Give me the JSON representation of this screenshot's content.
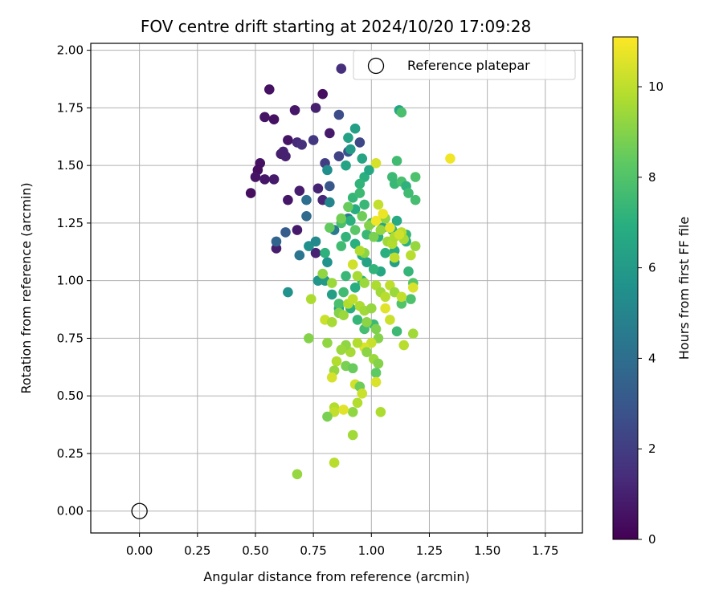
{
  "chart_data": {
    "type": "scatter",
    "title": "FOV centre drift starting at 2024/10/20 17:09:28",
    "xlabel": "Angular distance from reference (arcmin)",
    "ylabel": "Rotation from reference (arcmin)",
    "xlim": [
      -0.21,
      1.91
    ],
    "ylim": [
      -0.095,
      2.03
    ],
    "x_ticks": [
      "0.00",
      "0.25",
      "0.50",
      "0.75",
      "1.00",
      "1.25",
      "1.50",
      "1.75"
    ],
    "y_ticks": [
      "0.00",
      "0.25",
      "0.50",
      "0.75",
      "1.00",
      "1.25",
      "1.50",
      "1.75",
      "2.00"
    ],
    "grid": true,
    "legend": {
      "position": "top-right",
      "entries": [
        "Reference platepar"
      ]
    },
    "reference_point": {
      "label": "Reference platepar",
      "x": 0.0,
      "y": 0.0
    },
    "colorbar": {
      "label": "Hours from first FF file",
      "colormap": "viridis",
      "range": [
        0,
        11.1
      ],
      "ticks": [
        "0",
        "2",
        "4",
        "6",
        "8",
        "10"
      ]
    },
    "series": [
      {
        "points": [
          [
            0.56,
            1.83,
            0.5
          ],
          [
            0.79,
            1.81,
            0.4
          ],
          [
            0.54,
            1.71,
            0.6
          ],
          [
            0.58,
            1.7,
            0.5
          ],
          [
            0.67,
            1.74,
            0.7
          ],
          [
            0.76,
            1.75,
            1.0
          ],
          [
            0.82,
            1.64,
            0.8
          ],
          [
            0.64,
            1.61,
            0.6
          ],
          [
            0.68,
            1.6,
            1.3
          ],
          [
            0.7,
            1.59,
            1.5
          ],
          [
            0.75,
            1.61,
            1.8
          ],
          [
            0.52,
            1.51,
            0.5
          ],
          [
            0.51,
            1.48,
            0.4
          ],
          [
            0.5,
            1.45,
            0.6
          ],
          [
            0.54,
            1.44,
            0.7
          ],
          [
            0.58,
            1.44,
            0.8
          ],
          [
            0.61,
            1.55,
            0.9
          ],
          [
            0.62,
            1.56,
            1.0
          ],
          [
            0.63,
            1.54,
            1.0
          ],
          [
            0.48,
            1.38,
            0.4
          ],
          [
            0.64,
            1.35,
            0.7
          ],
          [
            0.69,
            1.39,
            0.9
          ],
          [
            0.77,
            1.4,
            1.1
          ],
          [
            0.79,
            1.35,
            1.2
          ],
          [
            0.68,
            1.22,
            0.8
          ],
          [
            0.59,
            1.14,
            0.9
          ],
          [
            0.76,
            1.12,
            1.1
          ],
          [
            0.8,
            1.51,
            2.0
          ],
          [
            0.86,
            1.72,
            2.6
          ],
          [
            0.87,
            1.92,
            1.5
          ],
          [
            0.86,
            1.54,
            2.2
          ],
          [
            0.9,
            1.56,
            2.8
          ],
          [
            0.95,
            1.6,
            2.4
          ],
          [
            0.82,
            1.41,
            3.0
          ],
          [
            0.63,
            1.21,
            3.2
          ],
          [
            0.59,
            1.17,
            3.6
          ],
          [
            0.72,
            1.28,
            3.8
          ],
          [
            0.72,
            1.35,
            4.0
          ],
          [
            0.69,
            1.11,
            4.3
          ],
          [
            0.84,
            1.22,
            4.5
          ],
          [
            0.9,
            1.27,
            4.6
          ],
          [
            0.82,
            1.34,
            5.0
          ],
          [
            0.81,
            1.48,
            5.4
          ],
          [
            0.73,
            1.15,
            5.5
          ],
          [
            0.76,
            1.17,
            5.2
          ],
          [
            0.81,
            1.08,
            5.6
          ],
          [
            0.64,
            0.95,
            5.6
          ],
          [
            0.77,
            1.0,
            5.8
          ],
          [
            0.8,
            1.0,
            6.0
          ],
          [
            0.83,
            0.94,
            6.2
          ],
          [
            0.86,
            0.88,
            6.4
          ],
          [
            0.93,
            1.66,
            6.2
          ],
          [
            0.9,
            1.62,
            6.3
          ],
          [
            0.89,
            1.5,
            6.4
          ],
          [
            0.91,
            1.57,
            6.0
          ],
          [
            0.96,
            1.53,
            6.5
          ],
          [
            0.97,
            1.45,
            7.0
          ],
          [
            0.99,
            1.48,
            6.6
          ],
          [
            0.95,
            1.42,
            7.2
          ],
          [
            0.92,
            1.36,
            7.3
          ],
          [
            0.95,
            1.38,
            7.5
          ],
          [
            0.97,
            1.33,
            7.4
          ],
          [
            0.93,
            1.31,
            6.8
          ],
          [
            0.91,
            1.26,
            7.0
          ],
          [
            0.87,
            1.25,
            7.8
          ],
          [
            0.87,
            1.15,
            7.6
          ],
          [
            0.89,
            1.19,
            7.2
          ],
          [
            0.93,
            1.16,
            7.0
          ],
          [
            0.96,
            1.11,
            6.8
          ],
          [
            0.98,
            1.2,
            7.4
          ],
          [
            1.0,
            1.25,
            7.6
          ],
          [
            1.03,
            1.19,
            7.0
          ],
          [
            1.05,
            1.23,
            6.5
          ],
          [
            1.09,
            1.22,
            7.2
          ],
          [
            1.11,
            1.26,
            6.7
          ],
          [
            1.12,
            1.74,
            6.5
          ],
          [
            1.13,
            1.73,
            7.8
          ],
          [
            1.11,
            1.52,
            7.6
          ],
          [
            1.09,
            1.45,
            7.5
          ],
          [
            1.1,
            1.42,
            7.4
          ],
          [
            1.13,
            1.43,
            7.8
          ],
          [
            1.15,
            1.41,
            7.1
          ],
          [
            1.16,
            1.38,
            7.6
          ],
          [
            1.19,
            1.45,
            7.9
          ],
          [
            1.19,
            1.35,
            7.7
          ],
          [
            1.15,
            1.2,
            7.3
          ],
          [
            1.15,
            1.17,
            7.0
          ],
          [
            1.1,
            1.13,
            6.8
          ],
          [
            1.1,
            1.08,
            6.2
          ],
          [
            1.06,
            1.12,
            7.0
          ],
          [
            1.04,
            1.04,
            6.6
          ],
          [
            1.01,
            1.05,
            7.2
          ],
          [
            0.98,
            1.08,
            6.4
          ],
          [
            0.96,
            1.0,
            7.1
          ],
          [
            0.93,
            0.97,
            6.9
          ],
          [
            0.89,
            1.02,
            7.4
          ],
          [
            0.88,
            0.95,
            7.6
          ],
          [
            0.86,
            0.9,
            7.8
          ],
          [
            0.91,
            0.88,
            7.0
          ],
          [
            0.94,
            0.83,
            7.3
          ],
          [
            0.97,
            0.79,
            7.7
          ],
          [
            1.01,
            0.81,
            7.5
          ],
          [
            1.11,
            0.78,
            7.5
          ],
          [
            1.13,
            0.9,
            8.0
          ],
          [
            1.17,
            0.92,
            7.9
          ],
          [
            1.18,
            0.99,
            8.1
          ],
          [
            1.16,
            1.04,
            7.3
          ],
          [
            0.8,
            1.12,
            7.1
          ],
          [
            0.82,
            1.23,
            8.4
          ],
          [
            0.87,
            1.27,
            8.7
          ],
          [
            0.9,
            1.32,
            8.5
          ],
          [
            0.93,
            1.22,
            8.2
          ],
          [
            0.96,
            1.28,
            8.6
          ],
          [
            0.99,
            1.24,
            9.0
          ],
          [
            1.01,
            1.19,
            8.8
          ],
          [
            1.04,
            1.22,
            9.3
          ],
          [
            1.06,
            1.27,
            9.2
          ],
          [
            1.07,
            1.17,
            9.5
          ],
          [
            1.09,
            1.16,
            9.8
          ],
          [
            1.1,
            1.19,
            9.7
          ],
          [
            1.13,
            1.21,
            9.9
          ],
          [
            1.14,
            1.18,
            9.6
          ],
          [
            1.17,
            1.11,
            9.9
          ],
          [
            1.19,
            1.15,
            9.3
          ],
          [
            0.97,
            1.12,
            9.1
          ],
          [
            0.95,
            1.13,
            9.8
          ],
          [
            0.92,
            1.07,
            10.3
          ],
          [
            0.94,
            1.02,
            9.6
          ],
          [
            0.97,
            0.99,
            9.4
          ],
          [
            1.02,
            0.98,
            9.7
          ],
          [
            1.04,
            0.95,
            9.5
          ],
          [
            1.06,
            0.93,
            9.9
          ],
          [
            1.08,
            0.98,
            10.0
          ],
          [
            1.1,
            0.95,
            9.4
          ],
          [
            1.13,
            0.93,
            10.1
          ],
          [
            1.18,
            0.97,
            10.5
          ],
          [
            0.79,
            1.03,
            9.2
          ],
          [
            0.83,
            0.99,
            9.4
          ],
          [
            0.74,
            0.92,
            9.7
          ],
          [
            0.8,
            0.83,
            10.2
          ],
          [
            0.83,
            0.82,
            9.6
          ],
          [
            0.86,
            0.86,
            9.0
          ],
          [
            0.88,
            0.85,
            9.4
          ],
          [
            0.9,
            0.9,
            9.8
          ],
          [
            0.92,
            0.92,
            10.0
          ],
          [
            0.95,
            0.89,
            9.7
          ],
          [
            0.97,
            0.87,
            9.5
          ],
          [
            1.0,
            0.88,
            9.3
          ],
          [
            0.98,
            0.82,
            9.1
          ],
          [
            1.02,
            0.79,
            8.9
          ],
          [
            1.03,
            0.75,
            9.0
          ],
          [
            1.0,
            0.73,
            10.2
          ],
          [
            0.97,
            0.71,
            10.5
          ],
          [
            0.94,
            0.73,
            9.8
          ],
          [
            0.91,
            0.69,
            9.6
          ],
          [
            0.89,
            0.72,
            9.2
          ],
          [
            0.87,
            0.7,
            9.4
          ],
          [
            0.85,
            0.65,
            9.8
          ],
          [
            0.81,
            0.73,
            9.2
          ],
          [
            0.73,
            0.75,
            9.0
          ],
          [
            0.84,
            0.61,
            9.3
          ],
          [
            0.83,
            0.58,
            10.4
          ],
          [
            0.89,
            0.63,
            8.8
          ],
          [
            0.92,
            0.62,
            8.5
          ],
          [
            0.98,
            0.69,
            9.1
          ],
          [
            1.01,
            0.66,
            9.4
          ],
          [
            1.03,
            0.64,
            9.0
          ],
          [
            1.02,
            0.6,
            8.3
          ],
          [
            1.06,
            0.88,
            10.6
          ],
          [
            1.08,
            0.83,
            10.2
          ],
          [
            1.14,
            0.72,
            9.9
          ],
          [
            1.18,
            0.77,
            9.5
          ],
          [
            0.93,
            0.55,
            10.3
          ],
          [
            0.95,
            0.54,
            8.6
          ],
          [
            0.96,
            0.51,
            10.2
          ],
          [
            0.94,
            0.47,
            9.8
          ],
          [
            1.02,
            0.56,
            10.5
          ],
          [
            0.92,
            0.43,
            9.2
          ],
          [
            0.84,
            0.45,
            9.8
          ],
          [
            0.84,
            0.43,
            10.1
          ],
          [
            0.88,
            0.44,
            10.6
          ],
          [
            0.81,
            0.41,
            8.8
          ],
          [
            1.04,
            0.43,
            9.7
          ],
          [
            0.92,
            0.33,
            9.5
          ],
          [
            0.84,
            0.21,
            9.9
          ],
          [
            0.68,
            0.16,
            9.3
          ],
          [
            1.34,
            1.53,
            10.9
          ],
          [
            1.02,
            1.51,
            10.4
          ],
          [
            1.03,
            1.33,
            10.1
          ],
          [
            1.05,
            1.29,
            10.8
          ],
          [
            1.02,
            1.26,
            10.9
          ],
          [
            1.08,
            1.23,
            10.7
          ],
          [
            1.12,
            1.2,
            10.3
          ],
          [
            1.1,
            1.1,
            10.0
          ]
        ]
      }
    ]
  }
}
